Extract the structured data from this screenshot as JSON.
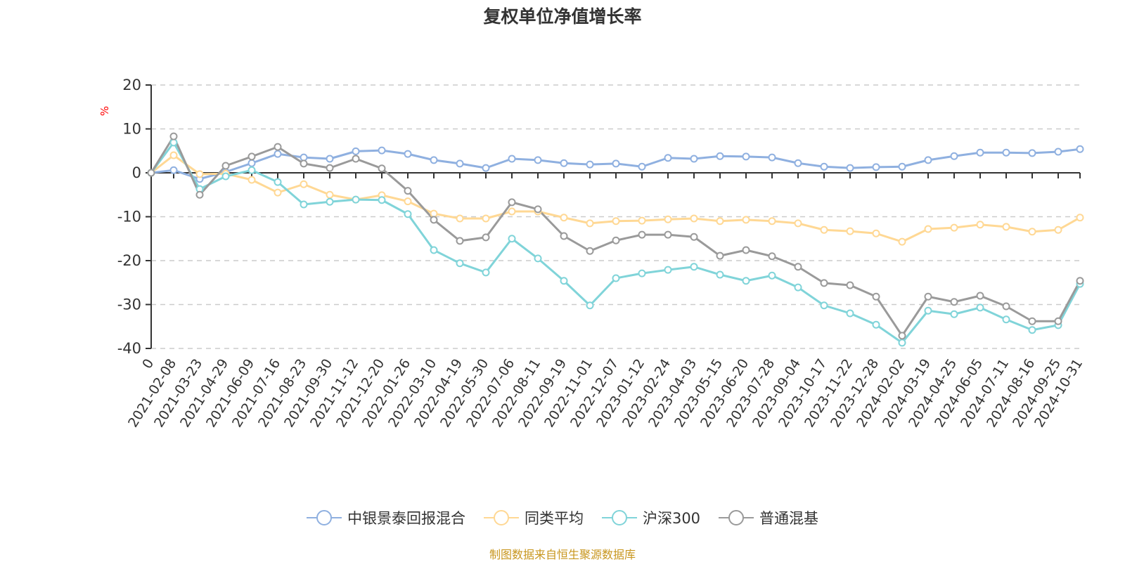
{
  "chart_data": {
    "type": "line",
    "title": "复权单位净值增长率",
    "ylabel": "%",
    "xlabel": "",
    "ylim": [
      -40,
      20
    ],
    "yticks": [
      20,
      10,
      0,
      -10,
      -20,
      -30,
      -40
    ],
    "grid": true,
    "legend_position": "bottom",
    "categories": [
      "0",
      "2021-02-08",
      "2021-03-23",
      "2021-04-29",
      "2021-06-09",
      "2021-07-16",
      "2021-08-23",
      "2021-09-30",
      "2021-11-12",
      "2021-12-20",
      "2022-01-26",
      "2022-03-10",
      "2022-04-19",
      "2022-05-30",
      "2022-07-06",
      "2022-08-11",
      "2022-09-19",
      "2022-11-01",
      "2022-12-07",
      "2023-01-12",
      "2023-02-24",
      "2023-04-03",
      "2023-05-15",
      "2023-06-20",
      "2023-07-28",
      "2023-09-04",
      "2023-10-17",
      "2023-11-22",
      "2023-12-28",
      "2024-02-02",
      "2024-03-19",
      "2024-04-25",
      "2024-06-05",
      "2024-07-11",
      "2024-08-16",
      "2024-09-25",
      "2024-10-31"
    ],
    "series": [
      {
        "name": "中银景泰回报混合",
        "color": "#8fb0e0",
        "values": [
          0,
          0.6,
          -1.4,
          0.2,
          2.2,
          4.3,
          3.5,
          3.2,
          4.9,
          5.1,
          4.3,
          2.9,
          2.1,
          1.1,
          3.2,
          2.9,
          2.2,
          1.9,
          2.1,
          1.4,
          3.4,
          3.2,
          3.8,
          3.7,
          3.5,
          2.2,
          1.4,
          1.1,
          1.3,
          1.4,
          2.9,
          3.8,
          4.6,
          4.6,
          4.5,
          4.8,
          5.4
        ]
      },
      {
        "name": "同类平均",
        "color": "#ffd894",
        "values": [
          0,
          4.0,
          -0.3,
          -0.2,
          -1.6,
          -4.5,
          -2.6,
          -5.0,
          -6.1,
          -5.1,
          -6.5,
          -9.3,
          -10.4,
          -10.4,
          -8.8,
          -8.8,
          -10.2,
          -11.5,
          -11.0,
          -10.9,
          -10.6,
          -10.4,
          -11.0,
          -10.7,
          -11.0,
          -11.5,
          -13.0,
          -13.3,
          -13.8,
          -15.7,
          -12.8,
          -12.5,
          -11.8,
          -12.3,
          -13.4,
          -13.0,
          -10.2
        ]
      },
      {
        "name": "沪深300",
        "color": "#80d4d9",
        "values": [
          0,
          6.9,
          -3.7,
          -0.8,
          0.6,
          -2.1,
          -7.2,
          -6.6,
          -6.1,
          -6.2,
          -9.4,
          -17.6,
          -20.6,
          -22.7,
          -15.0,
          -19.5,
          -24.6,
          -30.2,
          -24.0,
          -22.9,
          -22.1,
          -21.4,
          -23.2,
          -24.6,
          -23.4,
          -26.1,
          -30.2,
          -32.0,
          -34.6,
          -38.7,
          -31.4,
          -32.2,
          -30.7,
          -33.4,
          -35.8,
          -34.7,
          -25.3
        ]
      },
      {
        "name": "普通混基",
        "color": "#9a9a9a",
        "values": [
          0,
          8.3,
          -5.0,
          1.6,
          3.7,
          5.9,
          2.1,
          1.1,
          3.2,
          1.0,
          -4.1,
          -10.7,
          -15.5,
          -14.7,
          -6.7,
          -8.3,
          -14.4,
          -17.8,
          -15.4,
          -14.1,
          -14.1,
          -14.6,
          -18.9,
          -17.6,
          -19.0,
          -21.4,
          -25.1,
          -25.6,
          -28.2,
          -37.1,
          -28.2,
          -29.4,
          -28.0,
          -30.4,
          -33.8,
          -33.8,
          -24.6
        ]
      }
    ]
  },
  "ylabel_color": "#ff0000",
  "footer": {
    "text": "制图数据来自恒生聚源数据库",
    "color": "#c8961e"
  }
}
